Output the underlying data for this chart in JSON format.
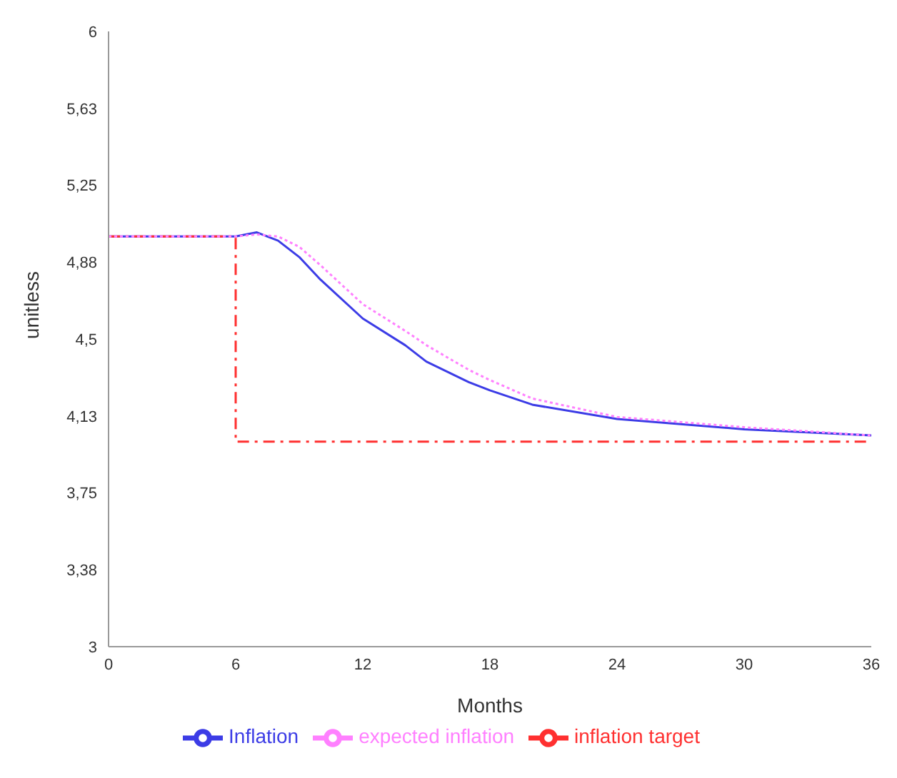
{
  "chart_data": {
    "type": "line",
    "xlabel": "Months",
    "ylabel": "unitless",
    "xlim": [
      0,
      36
    ],
    "xticks": [
      0,
      6,
      12,
      18,
      24,
      30,
      36
    ],
    "ylim": [
      3,
      6
    ],
    "yticks": [
      3,
      {
        "value": 3.375,
        "label": "3,38"
      },
      {
        "value": 3.75,
        "label": "3,75"
      },
      {
        "value": 4.125,
        "label": "4,13"
      },
      {
        "value": 4.5,
        "label": "4,5"
      },
      {
        "value": 4.875,
        "label": "4,88"
      },
      {
        "value": 5.25,
        "label": "5,25"
      },
      {
        "value": 5.625,
        "label": "5,63"
      },
      6
    ],
    "grid": false,
    "legend": "bottom",
    "series": [
      {
        "name": "Inflation",
        "color": "#3c3ce6",
        "line_style": "solid",
        "x": [
          0,
          6,
          7,
          8,
          9,
          10,
          12,
          14,
          15,
          17,
          18,
          20,
          24,
          30,
          36
        ],
        "values": [
          5.0,
          5.0,
          5.02,
          4.98,
          4.9,
          4.79,
          4.6,
          4.47,
          4.39,
          4.29,
          4.25,
          4.18,
          4.11,
          4.06,
          4.03
        ]
      },
      {
        "name": "inflation target",
        "color": "#ff3030",
        "line_style": "dashed",
        "x": [
          0,
          6,
          6,
          36
        ],
        "values": [
          5.0,
          5.0,
          4.0,
          4.0
        ]
      },
      {
        "name": "expected inflation",
        "color": "#ff80ff",
        "line_style": "dotted",
        "x": [
          0,
          6,
          7,
          8,
          9,
          10,
          12,
          14,
          15,
          17,
          18,
          20,
          24,
          30,
          36
        ],
        "values": [
          5.0,
          5.0,
          5.01,
          5.0,
          4.95,
          4.86,
          4.67,
          4.54,
          4.47,
          4.35,
          4.3,
          4.21,
          4.12,
          4.07,
          4.03
        ]
      }
    ]
  }
}
